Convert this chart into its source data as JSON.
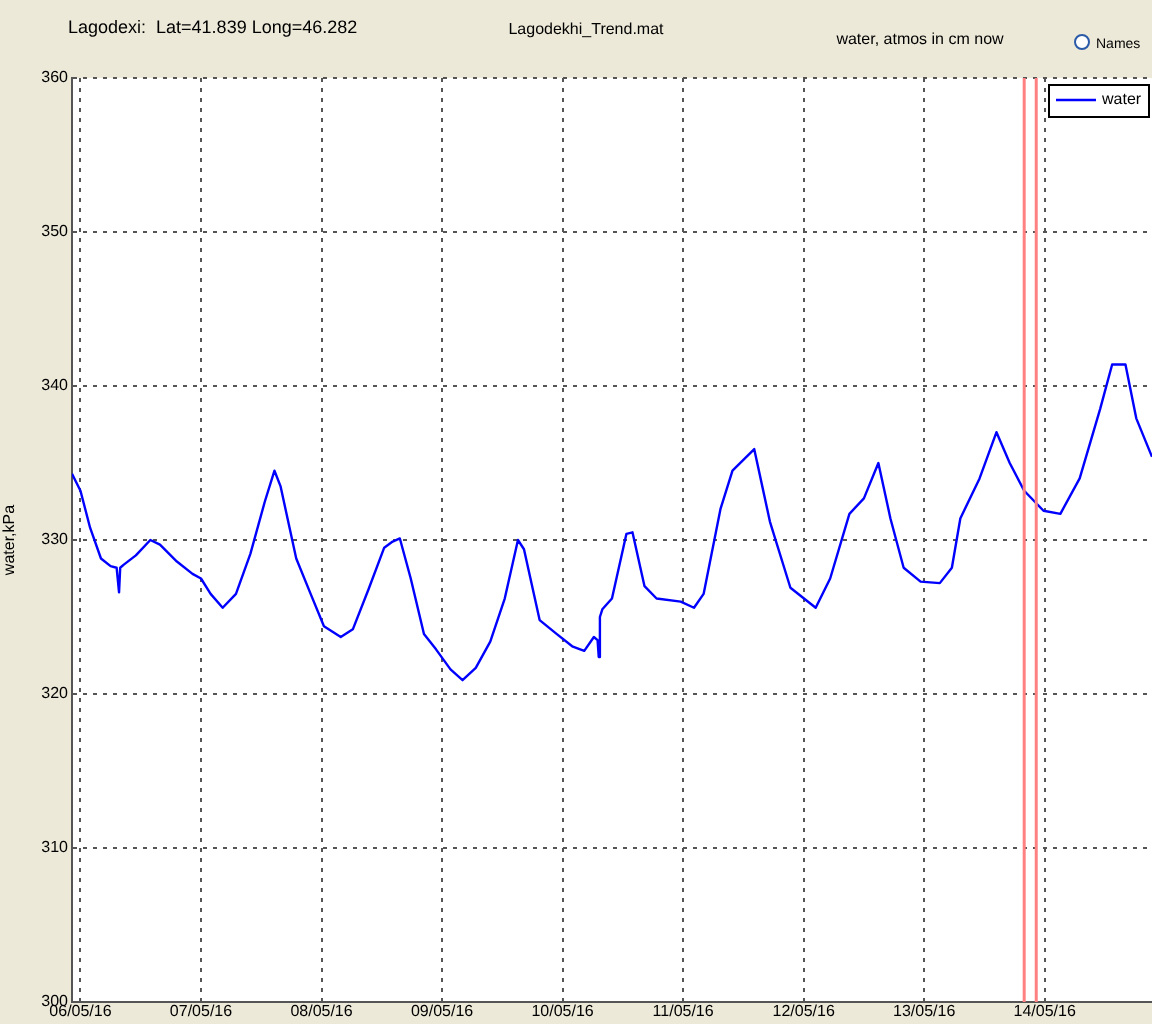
{
  "chart_data": {
    "type": "line",
    "title": "Lagodekhi_Trend.mat",
    "ylabel": "water,kPa",
    "annotations": [
      "Lagodexi:  Lat=41.839 Long=46.282",
      "water, atmos in cm now",
      "Names"
    ],
    "xlim": [
      "--05-05T22:19",
      "--05-14T21:22"
    ],
    "xticks": [
      {
        "value": "--05-06",
        "label": "06/05/16"
      },
      {
        "value": "--05-07",
        "label": "07/05/16"
      },
      {
        "value": "--05-08",
        "label": "08/05/16"
      },
      {
        "value": "--05-09",
        "label": "09/05/16"
      },
      {
        "value": "--05-10",
        "label": "10/05/16"
      },
      {
        "value": "--05-11",
        "label": "11/05/16"
      },
      {
        "value": "--05-12",
        "label": "12/05/16"
      },
      {
        "value": "--05-13",
        "label": "13/05/16"
      },
      {
        "value": "--05-14",
        "label": "14/05/16"
      }
    ],
    "ylim": [
      300,
      360
    ],
    "yticks": [
      300,
      310,
      320,
      330,
      340,
      350,
      360
    ],
    "grid": true,
    "legend": "top right",
    "marker": "none",
    "line_style": "solid",
    "ref_lines": [
      {
        "axis": "x",
        "value": "--05-13T19:55",
        "color": "#ff8080"
      },
      {
        "axis": "x",
        "value": "--05-13T22:19",
        "color": "#ff8080"
      }
    ],
    "series": [
      {
        "name": "water",
        "color": "#0000ff",
        "x": [
          "--05-05T22:19",
          "--05-06T00:00",
          "--05-06T01:55",
          "--05-06T04:05",
          "--05-06T06:00",
          "--05-06T07:12",
          "--05-06T07:26",
          "--05-06T07:41",
          "--05-06T07:55",
          "--05-06T08:38",
          "--05-06T11:02",
          "--05-06T13:55",
          "--05-06T15:50",
          "--05-06T19:12",
          "--05-06T22:19",
          "--05-07T00:00",
          "--05-07T01:55",
          "--05-07T04:19",
          "--05-07T06:58",
          "--05-07T09:50",
          "--05-07T12:43",
          "--05-07T14:38",
          "--05-07T15:50",
          "--05-07T18:58",
          "--05-07T21:50",
          "--05-08T00:29",
          "--05-08T03:50",
          "--05-08T06:14",
          "--05-08T09:22",
          "--05-08T12:29",
          "--05-08T14:10",
          "--05-08T15:36",
          "--05-08T17:46",
          "--05-08T20:24",
          "--05-08T22:48",
          "--05-09T01:41",
          "--05-09T04:05",
          "--05-09T06:43",
          "--05-09T09:36",
          "--05-09T12:29",
          "--05-09T15:07",
          "--05-09T16:19",
          "--05-09T19:26",
          "--05-09T22:48",
          "--05-10T01:55",
          "--05-10T04:19",
          "--05-10T06:14",
          "--05-10T06:58",
          "--05-10T07:12",
          "--05-10T07:26",
          "--05-10T07:55",
          "--05-10T09:50",
          "--05-10T12:43",
          "--05-10T13:55",
          "--05-10T16:19",
          "--05-10T18:43",
          "--05-10T23:31",
          "--05-11T02:10",
          "--05-11T04:05",
          "--05-11T07:26",
          "--05-11T09:50",
          "--05-11T14:10",
          "--05-11T17:17",
          "--05-11T21:22",
          "--05-12T02:24",
          "--05-12T05:17",
          "--05-12T09:07",
          "--05-12T12:00",
          "--05-12T14:53",
          "--05-12T17:17",
          "--05-12T19:55",
          "--05-12T23:17",
          "--05-13T03:07",
          "--05-13T05:31",
          "--05-13T07:12",
          "--05-13T11:02",
          "--05-13T14:24",
          "--05-13T17:02",
          "--05-13T19:55",
          "--05-13T23:46",
          "--05-14T03:07",
          "--05-14T06:58",
          "--05-14T11:02",
          "--05-14T13:26",
          "--05-14T16:05",
          "--05-14T18:14",
          "--05-14T21:22"
        ],
        "values": [
          334.3,
          333.2,
          330.8,
          328.8,
          328.3,
          328.2,
          328.2,
          326.6,
          328.2,
          328.4,
          329,
          330,
          329.7,
          328.6,
          327.8,
          327.5,
          326.5,
          325.6,
          326.5,
          329.1,
          332.5,
          334.5,
          333.5,
          328.8,
          326.5,
          324.4,
          323.7,
          324.2,
          326.8,
          329.5,
          329.9,
          330.1,
          327.5,
          323.9,
          322.9,
          321.6,
          320.9,
          321.7,
          323.4,
          326.2,
          330,
          329.4,
          324.8,
          323.9,
          323.1,
          322.8,
          323.7,
          323.5,
          322.4,
          325,
          325.5,
          326.2,
          330.4,
          330.5,
          327,
          326.2,
          326,
          325.6,
          326.5,
          332,
          334.5,
          335.9,
          331.2,
          326.9,
          325.6,
          327.5,
          331.7,
          332.7,
          335,
          331.4,
          328.2,
          327.3,
          327.2,
          328.2,
          331.4,
          334,
          337,
          335,
          333.2,
          331.9,
          331.7,
          334,
          338.5,
          341.4,
          341.4,
          337.9,
          335.4
        ]
      }
    ]
  }
}
